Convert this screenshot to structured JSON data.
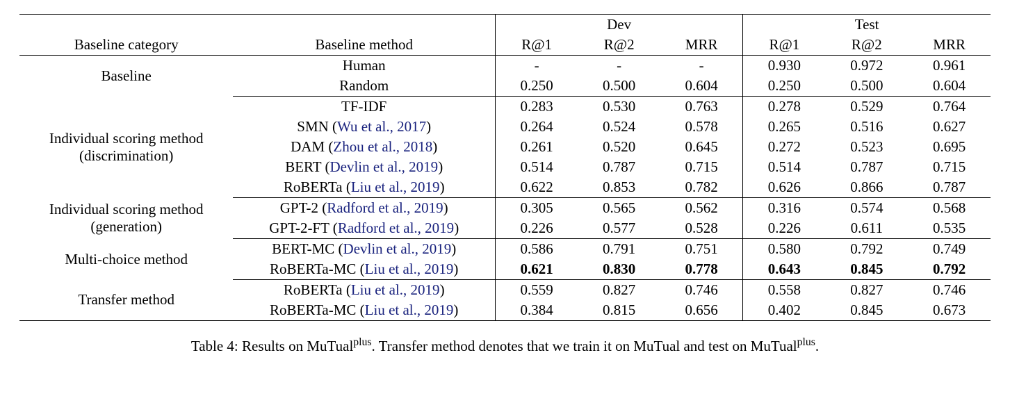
{
  "header": {
    "dev": "Dev",
    "test": "Test",
    "baseline_category": "Baseline category",
    "baseline_method": "Baseline method",
    "r1": "R@1",
    "r2": "R@2",
    "mrr": "MRR"
  },
  "groups": {
    "baseline": {
      "label1": "Baseline"
    },
    "isd": {
      "label1": "Individual scoring method",
      "label2": "(discrimination)"
    },
    "isg": {
      "label1": "Individual scoring method",
      "label2": "(generation)"
    },
    "mc": {
      "label1": "Multi-choice method"
    },
    "tr": {
      "label1": "Transfer method"
    }
  },
  "methods": {
    "human": {
      "name": "Human"
    },
    "random": {
      "name": "Random"
    },
    "tfidf": {
      "name": "TF-IDF"
    },
    "smn": {
      "name": "SMN (",
      "cite": "Wu et al., 2017",
      "close": ")"
    },
    "dam": {
      "name": "DAM (",
      "cite": "Zhou et al., 2018",
      "close": ")"
    },
    "bert": {
      "name": "BERT (",
      "cite": "Devlin et al., 2019",
      "close": ")"
    },
    "roberta": {
      "name": "RoBERTa (",
      "cite": "Liu et al., 2019",
      "close": ")"
    },
    "gpt2": {
      "name": "GPT-2 (",
      "cite": "Radford et al., 2019",
      "close": ")"
    },
    "gpt2ft": {
      "name": "GPT-2-FT (",
      "cite": "Radford et al., 2019",
      "close": ")"
    },
    "bertmc": {
      "name": "BERT-MC (",
      "cite": "Devlin et al., 2019",
      "close": ")"
    },
    "robertamc": {
      "name": "RoBERTa-MC (",
      "cite": "Liu et al., 2019",
      "close": ")"
    },
    "roberta_tr": {
      "name": "RoBERTa (",
      "cite": "Liu et al., 2019",
      "close": ")"
    },
    "robertamc_tr": {
      "name": "RoBERTa-MC (",
      "cite": "Liu et al., 2019",
      "close": ")"
    }
  },
  "rows": {
    "human": {
      "dev_r1": "-",
      "dev_r2": "-",
      "dev_mrr": "-",
      "test_r1": "0.930",
      "test_r2": "0.972",
      "test_mrr": "0.961"
    },
    "random": {
      "dev_r1": "0.250",
      "dev_r2": "0.500",
      "dev_mrr": "0.604",
      "test_r1": "0.250",
      "test_r2": "0.500",
      "test_mrr": "0.604"
    },
    "tfidf": {
      "dev_r1": "0.283",
      "dev_r2": "0.530",
      "dev_mrr": "0.763",
      "test_r1": "0.278",
      "test_r2": "0.529",
      "test_mrr": "0.764"
    },
    "smn": {
      "dev_r1": "0.264",
      "dev_r2": "0.524",
      "dev_mrr": "0.578",
      "test_r1": "0.265",
      "test_r2": "0.516",
      "test_mrr": "0.627"
    },
    "dam": {
      "dev_r1": "0.261",
      "dev_r2": "0.520",
      "dev_mrr": "0.645",
      "test_r1": "0.272",
      "test_r2": "0.523",
      "test_mrr": "0.695"
    },
    "bert": {
      "dev_r1": "0.514",
      "dev_r2": "0.787",
      "dev_mrr": "0.715",
      "test_r1": "0.514",
      "test_r2": "0.787",
      "test_mrr": "0.715"
    },
    "roberta": {
      "dev_r1": "0.622",
      "dev_r2": "0.853",
      "dev_mrr": "0.782",
      "test_r1": "0.626",
      "test_r2": "0.866",
      "test_mrr": "0.787"
    },
    "gpt2": {
      "dev_r1": "0.305",
      "dev_r2": "0.565",
      "dev_mrr": "0.562",
      "test_r1": "0.316",
      "test_r2": "0.574",
      "test_mrr": "0.568"
    },
    "gpt2ft": {
      "dev_r1": "0.226",
      "dev_r2": "0.577",
      "dev_mrr": "0.528",
      "test_r1": "0.226",
      "test_r2": "0.611",
      "test_mrr": "0.535"
    },
    "bertmc": {
      "dev_r1": "0.586",
      "dev_r2": "0.791",
      "dev_mrr": "0.751",
      "test_r1": "0.580",
      "test_r2": "0.792",
      "test_mrr": "0.749"
    },
    "robertamc": {
      "dev_r1": "0.621",
      "dev_r2": "0.830",
      "dev_mrr": "0.778",
      "test_r1": "0.643",
      "test_r2": "0.845",
      "test_mrr": "0.792",
      "bold": true
    },
    "roberta_tr": {
      "dev_r1": "0.559",
      "dev_r2": "0.827",
      "dev_mrr": "0.746",
      "test_r1": "0.558",
      "test_r2": "0.827",
      "test_mrr": "0.746"
    },
    "robertamc_tr": {
      "dev_r1": "0.384",
      "dev_r2": "0.815",
      "dev_mrr": "0.656",
      "test_r1": "0.402",
      "test_r2": "0.845",
      "test_mrr": "0.673"
    }
  },
  "caption": {
    "prefix": "Table 4: Results on MuTual",
    "sup1": "plus",
    "mid": ". Transfer method denotes that we train it on MuTual and test on MuTual",
    "sup2": "plus",
    "suffix": "."
  },
  "styling": {
    "cite_color": "#1a237e",
    "font_family": "Times New Roman",
    "font_size_pt": 21,
    "rule_color": "#000000"
  }
}
